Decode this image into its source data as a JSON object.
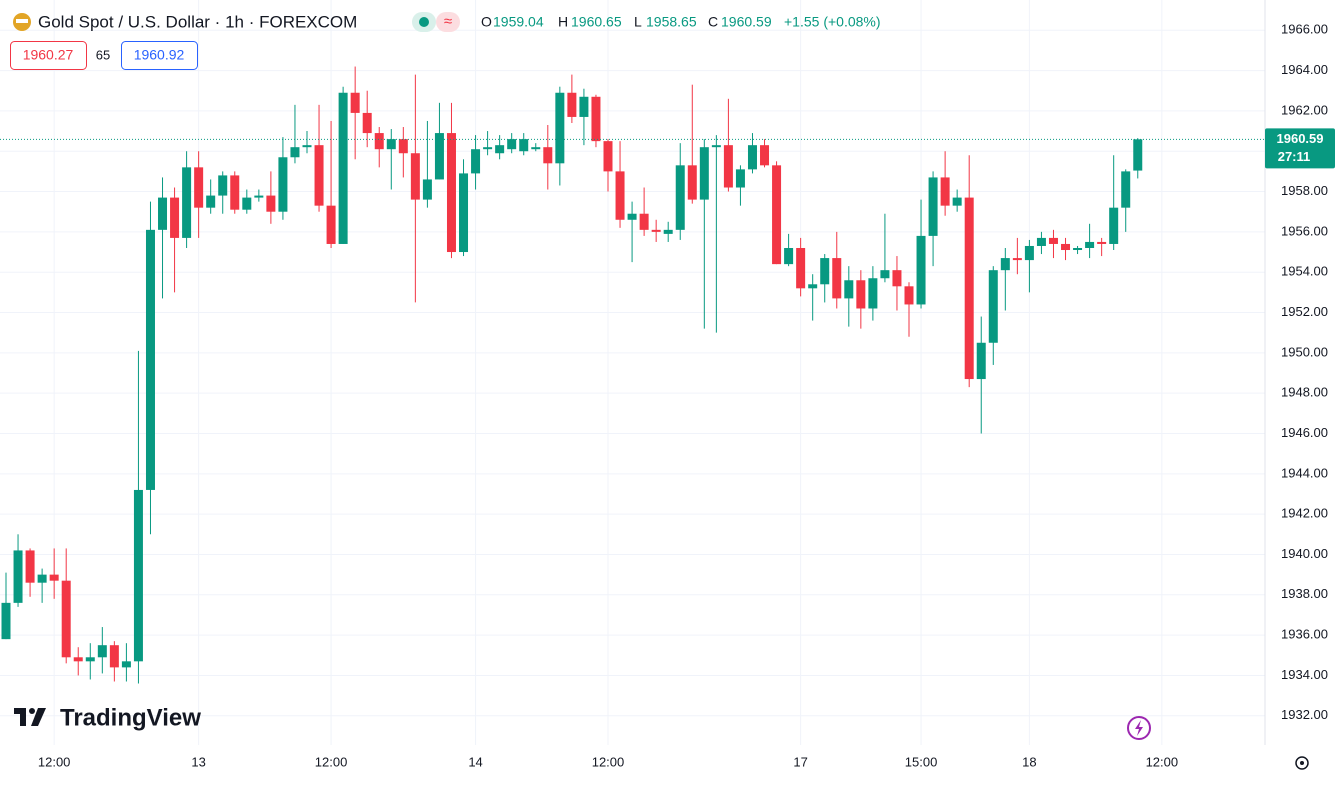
{
  "header": {
    "symbol": "Gold Spot / U.S. Dollar · 1h · FOREXCOM",
    "o_label": "O",
    "h_label": "H",
    "l_label": "L",
    "c_label": "C",
    "change": "+1.55 (+0.08%)",
    "bid": 1960.27,
    "spread": 65,
    "ask": 1960.92,
    "countdown": "27:11",
    "brand": "TradingView"
  },
  "chart_data": {
    "type": "candlestick",
    "categories": [
      null,
      null,
      null,
      null,
      "12:00",
      null,
      null,
      null,
      null,
      null,
      null,
      null,
      null,
      null,
      null,
      null,
      "13",
      null,
      null,
      null,
      null,
      null,
      null,
      null,
      null,
      null,
      null,
      "12:00",
      null,
      null,
      null,
      null,
      null,
      null,
      null,
      null,
      null,
      null,
      null,
      "14",
      null,
      null,
      null,
      null,
      null,
      null,
      null,
      null,
      null,
      null,
      "12:00",
      null,
      null,
      null,
      null,
      null,
      null,
      null,
      null,
      null,
      null,
      null,
      null,
      null,
      null,
      null,
      "17",
      null,
      null,
      null,
      null,
      null,
      null,
      null,
      null,
      null,
      "15:00",
      null,
      null,
      null,
      null,
      null,
      null,
      null,
      null,
      "18",
      null,
      null,
      null,
      null,
      null,
      null,
      null,
      null,
      null,
      null,
      "12:00"
    ],
    "open": [
      1935.8,
      1937.6,
      1940.2,
      1938.6,
      1939.0,
      1938.7,
      1934.9,
      1934.7,
      1934.9,
      1935.5,
      1934.4,
      1934.7,
      1943.2,
      1956.1,
      1957.7,
      1955.7,
      1959.2,
      1957.2,
      1957.8,
      1958.8,
      1957.1,
      1957.7,
      1957.8,
      1957.0,
      1959.7,
      1960.2,
      1960.3,
      1957.3,
      1955.4,
      1962.9,
      1961.9,
      1960.9,
      1960.1,
      1960.6,
      1959.9,
      1957.6,
      1958.6,
      1960.9,
      1955.0,
      1958.9,
      1960.1,
      1959.9,
      1960.1,
      1960.0,
      1960.1,
      1960.2,
      1959.4,
      1962.9,
      1961.7,
      1962.7,
      1960.5,
      1959.0,
      1956.6,
      1956.9,
      1956.1,
      1955.9,
      1956.1,
      1959.3,
      1957.6,
      1960.2,
      1960.3,
      1958.2,
      1959.1,
      1960.3,
      1959.3,
      1954.4,
      1955.2,
      1953.2,
      1953.4,
      1954.7,
      1952.7,
      1953.6,
      1952.2,
      1953.7,
      1954.1,
      1953.3,
      1952.4,
      1955.8,
      1958.7,
      1957.3,
      1957.7,
      1948.7,
      1950.5,
      1954.1,
      1954.7,
      1954.6,
      1955.3,
      1955.7,
      1955.4,
      1955.1,
      1955.2,
      1955.5,
      1955.4,
      1957.2,
      1959.04,
      null,
      null
    ],
    "high": [
      1939.1,
      1941.0,
      1940.3,
      1939.3,
      1940.3,
      1940.3,
      1935.4,
      1935.6,
      1936.4,
      1935.7,
      1935.6,
      1950.1,
      1957.5,
      1958.7,
      1958.2,
      1960.0,
      1960.0,
      1958.6,
      1959.0,
      1959.0,
      1958.1,
      1958.1,
      1959.0,
      1960.7,
      1962.3,
      1961.0,
      1962.3,
      1961.5,
      1963.2,
      1964.2,
      1963.0,
      1961.2,
      1961.1,
      1961.2,
      1963.8,
      1961.5,
      1962.4,
      1962.4,
      1959.6,
      1960.8,
      1961.0,
      1960.8,
      1960.9,
      1960.9,
      1960.4,
      1961.3,
      1963.2,
      1963.8,
      1963.1,
      1962.8,
      1960.6,
      1960.5,
      1957.5,
      1958.2,
      1956.6,
      1956.5,
      1960.4,
      1963.3,
      1960.6,
      1960.8,
      1962.6,
      1959.3,
      1960.9,
      1960.6,
      1959.5,
      1955.9,
      1955.7,
      1953.9,
      1954.9,
      1956.0,
      1954.3,
      1954.1,
      1954.3,
      1956.9,
      1954.8,
      1953.5,
      1957.6,
      1959.0,
      1960.0,
      1958.1,
      1959.8,
      1951.8,
      1954.3,
      1955.2,
      1955.7,
      1955.6,
      1956.0,
      1956.1,
      1955.7,
      1955.3,
      1956.4,
      1955.7,
      1959.8,
      1959.1,
      1960.65,
      null,
      null
    ],
    "low": [
      1935.8,
      1937.4,
      1937.9,
      1937.6,
      1937.8,
      1934.6,
      1934.0,
      1933.8,
      1934.1,
      1933.7,
      1933.7,
      1933.6,
      1941.0,
      1952.7,
      1953.0,
      1955.2,
      1955.7,
      1956.9,
      1956.9,
      1956.9,
      1956.9,
      1957.5,
      1956.4,
      1956.6,
      1959.4,
      1959.9,
      1957.0,
      1955.2,
      1955.4,
      1959.6,
      1960.2,
      1959.2,
      1958.1,
      1958.7,
      1952.5,
      1957.2,
      1958.6,
      1954.7,
      1954.8,
      1958.1,
      1959.8,
      1959.6,
      1959.9,
      1959.8,
      1960.0,
      1958.1,
      1958.3,
      1961.4,
      1960.3,
      1960.2,
      1958.0,
      1956.2,
      1954.5,
      1955.8,
      1955.5,
      1955.5,
      1955.6,
      1957.4,
      1951.2,
      1951.0,
      1958.0,
      1957.3,
      1958.9,
      1959.2,
      1954.4,
      1954.3,
      1952.8,
      1951.6,
      1952.5,
      1952.2,
      1951.3,
      1951.2,
      1951.6,
      1953.5,
      1952.1,
      1950.8,
      1952.2,
      1954.3,
      1956.8,
      1957.0,
      1948.3,
      1946.0,
      1949.4,
      1952.1,
      1953.9,
      1953.0,
      1954.9,
      1954.7,
      1954.6,
      1954.9,
      1954.7,
      1954.8,
      1955.1,
      1956.0,
      1958.65,
      null,
      null
    ],
    "close": [
      1937.6,
      1940.2,
      1938.6,
      1939.0,
      1938.7,
      1934.9,
      1934.7,
      1934.9,
      1935.5,
      1934.4,
      1934.7,
      1943.2,
      1956.1,
      1957.7,
      1955.7,
      1959.2,
      1957.2,
      1957.8,
      1958.8,
      1957.1,
      1957.7,
      1957.8,
      1957.0,
      1959.7,
      1960.2,
      1960.3,
      1957.3,
      1955.4,
      1962.9,
      1961.9,
      1960.9,
      1960.1,
      1960.6,
      1959.9,
      1957.6,
      1958.6,
      1960.9,
      1955.0,
      1958.9,
      1960.1,
      1960.2,
      1960.3,
      1960.6,
      1960.6,
      1960.2,
      1959.4,
      1962.9,
      1961.7,
      1962.7,
      1960.5,
      1959.0,
      1956.6,
      1956.9,
      1956.1,
      1956.0,
      1956.1,
      1959.3,
      1957.6,
      1960.2,
      1960.3,
      1958.2,
      1959.1,
      1960.3,
      1959.3,
      1954.4,
      1955.2,
      1953.2,
      1953.4,
      1954.7,
      1952.7,
      1953.6,
      1952.2,
      1953.7,
      1954.1,
      1953.3,
      1952.4,
      1955.8,
      1958.7,
      1957.3,
      1957.7,
      1948.7,
      1950.5,
      1954.1,
      1954.7,
      1954.6,
      1955.3,
      1955.7,
      1955.4,
      1955.1,
      1955.2,
      1955.5,
      1955.4,
      1957.2,
      1959.0,
      1960.59,
      null,
      null
    ],
    "up_color": "#089981",
    "down_color": "#f23645",
    "ylim": [
      1930.55,
      1967.5
    ],
    "yticks": [
      {
        "value": 1932,
        "label": "1932.00"
      },
      {
        "value": 1934,
        "label": "1934.00"
      },
      {
        "value": 1936,
        "label": "1936.00"
      },
      {
        "value": 1938,
        "label": "1938.00"
      },
      {
        "value": 1940,
        "label": "1940.00"
      },
      {
        "value": 1942,
        "label": "1942.00"
      },
      {
        "value": 1944,
        "label": "1944.00"
      },
      {
        "value": 1946,
        "label": "1946.00"
      },
      {
        "value": 1948,
        "label": "1948.00"
      },
      {
        "value": 1950,
        "label": "1950.00"
      },
      {
        "value": 1952,
        "label": "1952.00"
      },
      {
        "value": 1954,
        "label": "1954.00"
      },
      {
        "value": 1956,
        "label": "1956.00"
      },
      {
        "value": 1958,
        "label": "1958.00"
      },
      {
        "value": 1960,
        "label": "1960.00"
      },
      {
        "value": 1962,
        "label": "1962.00"
      },
      {
        "value": 1964,
        "label": "1964.00"
      },
      {
        "value": 1966,
        "label": "1966.00"
      }
    ],
    "grid": true
  }
}
